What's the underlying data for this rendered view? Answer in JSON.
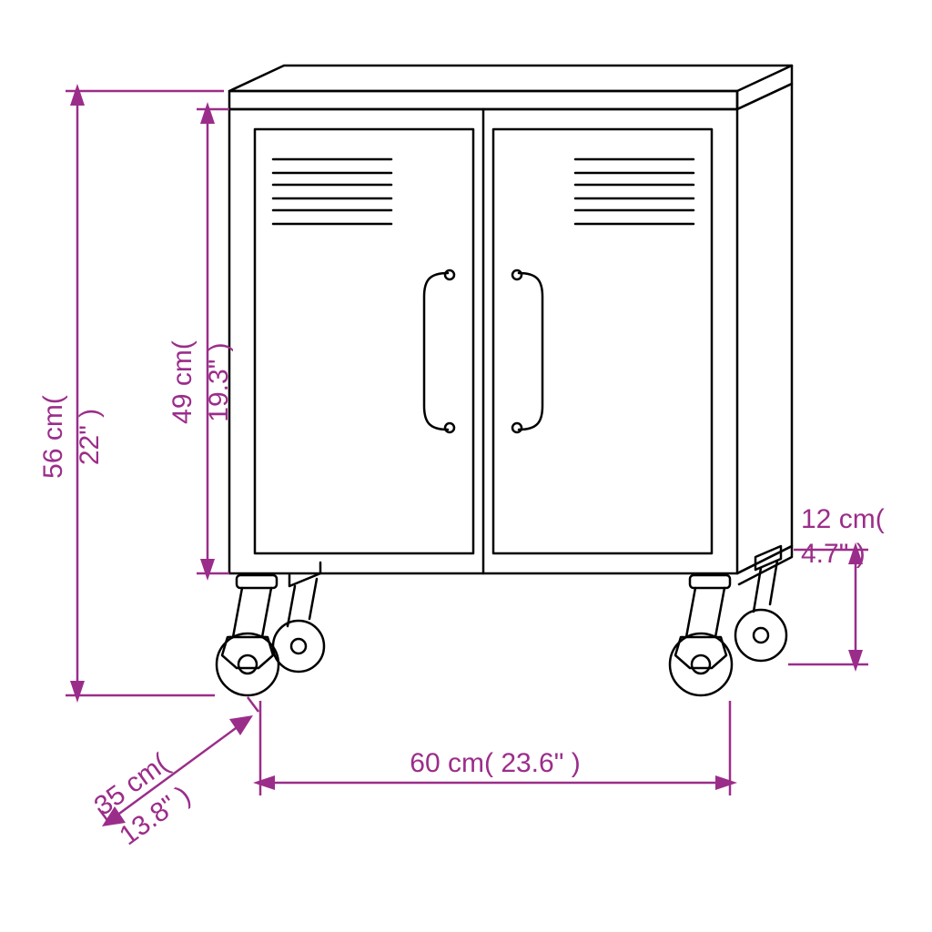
{
  "type": "dimensioned-product-drawing",
  "product": "two-door storage cabinet on casters",
  "colors": {
    "line": "#000000",
    "dim": "#9b2d8a",
    "background": "#ffffff"
  },
  "stroke_width": 2.5,
  "fonts": {
    "dim_size_pt": 30,
    "family": "Arial"
  },
  "dimensions": {
    "total_height": {
      "cm": 56,
      "in": "22\"",
      "label_line1": "56 cm(",
      "label_line2": "22\" )"
    },
    "door_height": {
      "cm": 49,
      "in": "19.3\"",
      "label_line1": "49 cm(",
      "label_line2": "19.3\" )"
    },
    "wheel_height": {
      "cm": 12,
      "in": "4.7\"",
      "label_line1": "12 cm(",
      "label_line2": "4.7\" )"
    },
    "width": {
      "cm": 60,
      "in": "23.6\"",
      "label_line1": "60 cm( 23.6\" )"
    },
    "depth": {
      "cm": 35,
      "in": "13.8\"",
      "label_line1": "35 cm(",
      "label_line2": "13.8\" )"
    }
  }
}
